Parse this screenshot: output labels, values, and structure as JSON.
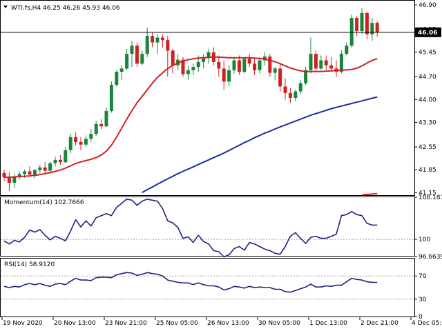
{
  "symbol_info": "WTI.fs,H4  46.25 46.26 45.93 46.06",
  "colors": {
    "bull": "#17863a",
    "bear": "#d21f24",
    "sma_fast": "#d21f24",
    "sma_slow": "#1b2ca8",
    "indicator": "#1a237e",
    "price_line": "#000000",
    "background": "#ffffff"
  },
  "chart_data": [
    {
      "type": "candlestick",
      "title": "WTI.fs,H4  46.25 46.26 45.93 46.06",
      "last_price_label": "46.06",
      "ylim": [
        41.05,
        47.05
      ],
      "y_ticks": [
        "46.90",
        "46.15",
        "45.45",
        "44.70",
        "44.00",
        "43.30",
        "42.55",
        "41.85",
        "41.15"
      ],
      "y_tick_values": [
        46.9,
        46.15,
        45.45,
        44.7,
        44.0,
        43.3,
        42.55,
        41.85,
        41.15
      ],
      "x_ticks": [
        "19 Nov 2020",
        "20 Nov 13:00",
        "23 Nov 21:00",
        "25 Nov 05:00",
        "26 Nov 13:00",
        "30 Nov 05:00",
        "1 Dec 13:00",
        "2 Dec 21:00",
        "4 Dec 05:00"
      ],
      "x_tick_index": [
        0,
        10,
        20,
        30,
        40,
        50,
        60,
        70,
        80
      ],
      "ohlc": [
        [
          41.75,
          41.85,
          41.5,
          41.62
        ],
        [
          41.62,
          41.78,
          41.2,
          41.45
        ],
        [
          41.45,
          41.72,
          41.3,
          41.65
        ],
        [
          41.65,
          41.8,
          41.55,
          41.72
        ],
        [
          41.72,
          41.85,
          41.6,
          41.8
        ],
        [
          41.8,
          41.95,
          41.68,
          41.7
        ],
        [
          41.7,
          41.88,
          41.58,
          41.84
        ],
        [
          41.84,
          42.0,
          41.74,
          41.92
        ],
        [
          41.92,
          42.08,
          41.7,
          41.82
        ],
        [
          41.82,
          42.1,
          41.75,
          42.05
        ],
        [
          42.05,
          42.25,
          41.95,
          42.15
        ],
        [
          42.15,
          42.3,
          42.0,
          42.08
        ],
        [
          42.08,
          42.55,
          42.05,
          42.45
        ],
        [
          42.45,
          42.95,
          42.35,
          42.85
        ],
        [
          42.85,
          43.0,
          42.6,
          42.7
        ],
        [
          42.7,
          42.85,
          42.45,
          42.62
        ],
        [
          42.62,
          42.9,
          42.55,
          42.8
        ],
        [
          42.8,
          43.1,
          42.7,
          42.95
        ],
        [
          42.95,
          43.35,
          42.88,
          43.25
        ],
        [
          43.25,
          43.4,
          43.1,
          43.18
        ],
        [
          43.18,
          43.75,
          43.15,
          43.65
        ],
        [
          43.65,
          44.55,
          43.6,
          44.45
        ],
        [
          44.45,
          44.9,
          44.4,
          44.85
        ],
        [
          44.85,
          45.05,
          44.6,
          44.95
        ],
        [
          44.95,
          45.55,
          44.9,
          45.4
        ],
        [
          45.4,
          45.8,
          45.0,
          45.65
        ],
        [
          45.65,
          45.75,
          45.0,
          45.1
        ],
        [
          45.1,
          45.5,
          45.05,
          45.4
        ],
        [
          45.4,
          46.2,
          45.3,
          45.95
        ],
        [
          45.95,
          46.05,
          45.6,
          45.75
        ],
        [
          45.75,
          46.0,
          45.4,
          45.9
        ],
        [
          45.9,
          46.0,
          45.6,
          45.82
        ],
        [
          45.82,
          45.95,
          44.7,
          45.5
        ],
        [
          45.5,
          45.55,
          44.8,
          45.05
        ],
        [
          45.05,
          45.4,
          44.9,
          45.22
        ],
        [
          45.22,
          45.3,
          44.7,
          44.78
        ],
        [
          44.78,
          45.05,
          44.6,
          44.9
        ],
        [
          44.9,
          45.1,
          44.75,
          45.0
        ],
        [
          45.0,
          45.35,
          44.85,
          45.15
        ],
        [
          45.15,
          45.4,
          44.95,
          45.3
        ],
        [
          45.3,
          45.55,
          45.1,
          45.45
        ],
        [
          45.45,
          45.6,
          45.05,
          45.15
        ],
        [
          45.15,
          45.35,
          44.7,
          44.95
        ],
        [
          44.95,
          45.2,
          44.3,
          44.55
        ],
        [
          44.55,
          45.05,
          44.4,
          44.9
        ],
        [
          44.9,
          45.3,
          44.8,
          45.2
        ],
        [
          45.2,
          45.35,
          44.75,
          44.85
        ],
        [
          44.85,
          45.3,
          44.8,
          45.25
        ],
        [
          45.25,
          45.4,
          45.0,
          45.1
        ],
        [
          45.1,
          45.25,
          44.75,
          44.9
        ],
        [
          44.9,
          45.3,
          44.8,
          45.2
        ],
        [
          45.2,
          45.45,
          45.05,
          45.32
        ],
        [
          45.32,
          45.4,
          44.7,
          44.82
        ],
        [
          44.82,
          45.0,
          44.6,
          44.95
        ],
        [
          44.95,
          45.1,
          44.25,
          44.4
        ],
        [
          44.4,
          44.65,
          44.0,
          44.2
        ],
        [
          44.2,
          44.35,
          43.9,
          44.05
        ],
        [
          44.05,
          44.3,
          43.95,
          44.25
        ],
        [
          44.25,
          44.6,
          44.15,
          44.5
        ],
        [
          44.5,
          45.0,
          44.45,
          44.9
        ],
        [
          44.9,
          45.9,
          44.8,
          45.4
        ],
        [
          45.4,
          45.5,
          44.85,
          44.95
        ],
        [
          44.95,
          45.35,
          44.9,
          45.2
        ],
        [
          45.2,
          45.35,
          44.9,
          45.05
        ],
        [
          45.05,
          45.3,
          44.85,
          44.95
        ],
        [
          44.95,
          45.2,
          44.7,
          44.85
        ],
        [
          44.85,
          45.5,
          44.8,
          45.4
        ],
        [
          45.4,
          45.75,
          45.35,
          45.65
        ],
        [
          45.65,
          46.6,
          45.6,
          46.5
        ],
        [
          46.5,
          46.55,
          45.95,
          46.1
        ],
        [
          46.1,
          46.8,
          46.0,
          46.65
        ],
        [
          46.65,
          46.7,
          45.85,
          46.0
        ],
        [
          46.0,
          46.5,
          45.8,
          46.35
        ],
        [
          46.35,
          46.4,
          45.92,
          46.06
        ]
      ],
      "series": [
        {
          "name": "SMA fast",
          "values": [
            41.62,
            41.62,
            41.63,
            41.64,
            41.65,
            41.66,
            41.68,
            41.7,
            41.73,
            41.76,
            41.8,
            41.84,
            41.9,
            41.97,
            42.04,
            42.09,
            42.13,
            42.17,
            42.22,
            42.3,
            42.42,
            42.6,
            42.85,
            43.12,
            43.4,
            43.66,
            43.9,
            44.1,
            44.3,
            44.5,
            44.68,
            44.82,
            44.95,
            45.05,
            45.12,
            45.18,
            45.22,
            45.25,
            45.27,
            45.28,
            45.29,
            45.3,
            45.3,
            45.29,
            45.28,
            45.28,
            45.28,
            45.28,
            45.28,
            45.27,
            45.26,
            45.24,
            45.2,
            45.16,
            45.1,
            45.03,
            44.97,
            44.92,
            44.88,
            44.86,
            44.86,
            44.86,
            44.86,
            44.87,
            44.88,
            44.89,
            44.9,
            44.91,
            44.92,
            44.96,
            45.03,
            45.12,
            45.2,
            45.25
          ]
        },
        {
          "name": "SMA slow",
          "values": [
            null,
            null,
            null,
            null,
            null,
            null,
            null,
            null,
            null,
            null,
            null,
            null,
            null,
            null,
            null,
            null,
            null,
            null,
            null,
            null,
            null,
            null,
            null,
            null,
            null,
            null,
            null,
            41.15,
            41.24,
            41.32,
            41.41,
            41.49,
            41.57,
            41.65,
            41.73,
            41.8,
            41.87,
            41.94,
            42.01,
            42.08,
            42.15,
            42.22,
            42.29,
            42.36,
            42.44,
            42.52,
            42.6,
            42.68,
            42.75,
            42.83,
            42.9,
            42.97,
            43.03,
            43.1,
            43.16,
            43.22,
            43.28,
            43.34,
            43.4,
            43.46,
            43.52,
            43.57,
            43.62,
            43.67,
            43.72,
            43.76,
            43.8,
            43.84,
            43.88,
            43.92,
            43.96,
            44.0,
            44.04,
            44.08
          ]
        }
      ],
      "extra_series_tail": {
        "x_index": [
          70,
          73
        ],
        "values": [
          41.08,
          41.12
        ]
      }
    },
    {
      "type": "line",
      "title": "Momentum(14) 102.7666",
      "ylim": [
        96.6639,
        108.1813
      ],
      "y_ticks": [
        "108.1813",
        "100",
        "96.6639"
      ],
      "y_tick_values": [
        108.1813,
        100,
        96.6639
      ],
      "series": [
        {
          "name": "Momentum(14)",
          "values": [
            99.7,
            99.1,
            99.8,
            99.5,
            100.4,
            101.8,
            101.4,
            101.9,
            100.8,
            99.9,
            100.6,
            100.2,
            99.7,
            101.6,
            103.8,
            102.4,
            103.6,
            102.6,
            104.2,
            104.6,
            105.0,
            104.6,
            106.2,
            107.0,
            107.8,
            107.6,
            106.6,
            107.4,
            107.8,
            107.6,
            107.4,
            106.0,
            103.6,
            103.2,
            102.3,
            100.2,
            100.5,
            99.4,
            100.8,
            99.6,
            99.1,
            97.8,
            97.6,
            96.6,
            97.0,
            98.2,
            98.6,
            97.9,
            99.4,
            99.1,
            98.6,
            98.1,
            97.8,
            97.3,
            97.1,
            98.6,
            100.6,
            101.3,
            100.2,
            99.2,
            100.4,
            100.6,
            100.2,
            100.2,
            100.6,
            101.0,
            104.6,
            104.8,
            105.4,
            104.8,
            104.6,
            103.1,
            102.7666,
            102.7666
          ]
        }
      ]
    },
    {
      "type": "line",
      "title": "RSI(14) 58.9120",
      "ylim": [
        0,
        100
      ],
      "y_ticks": [
        "70",
        "30",
        "0"
      ],
      "y_tick_values": [
        70,
        30,
        0
      ],
      "levels": [
        70,
        30
      ],
      "series": [
        {
          "name": "RSI(14)",
          "values": [
            52,
            50,
            52,
            51,
            55,
            57,
            55,
            57,
            54,
            52,
            56,
            57,
            55,
            61,
            66,
            63,
            63,
            62,
            67,
            68,
            68,
            67,
            72,
            74,
            76,
            75,
            71,
            73,
            76,
            74,
            73,
            70,
            63,
            61,
            59,
            58,
            58,
            55,
            58,
            55,
            53,
            53,
            51,
            46,
            48,
            52,
            51,
            49,
            52,
            50,
            51,
            50,
            50,
            47,
            47,
            43,
            42,
            45,
            48,
            51,
            56,
            51,
            51,
            53,
            52,
            54,
            54,
            60,
            66,
            64,
            63,
            60,
            59,
            58.912
          ]
        }
      ]
    }
  ]
}
